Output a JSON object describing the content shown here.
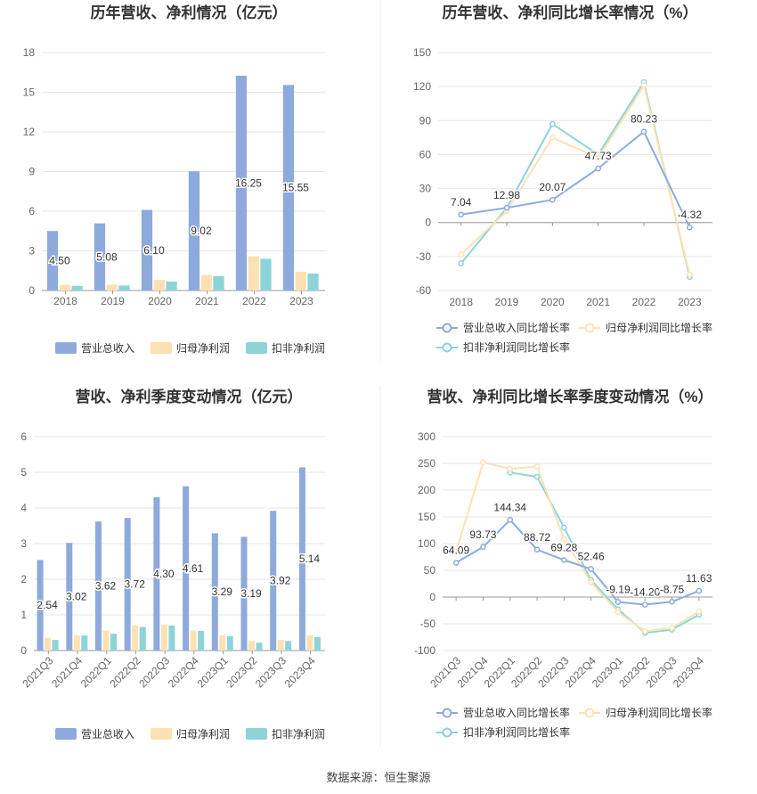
{
  "source": "数据来源：恒生聚源",
  "colors": {
    "revenue": "#8eaadc",
    "net_profit": "#fde1b2",
    "deducted_profit": "#8dd4d9",
    "grid": "#e6e6e6",
    "axis": "#999999",
    "text": "#666666",
    "title": "#333333"
  },
  "chart_data": [
    {
      "id": "annual-values",
      "type": "bar",
      "title": "历年营收、净利情况（亿元）",
      "categories": [
        "2018",
        "2019",
        "2020",
        "2021",
        "2022",
        "2023"
      ],
      "ylim": [
        0,
        18
      ],
      "yticks": [
        0,
        3,
        6,
        9,
        12,
        15,
        18
      ],
      "grid": true,
      "legend_position": "bottom",
      "series": [
        {
          "name": "营业总收入",
          "values": [
            4.5,
            5.08,
            6.1,
            9.02,
            16.25,
            15.55
          ],
          "labels": [
            "4.50",
            "5.08",
            "6.10",
            "9.02",
            "16.25",
            "15.55"
          ]
        },
        {
          "name": "归母净利润",
          "values": [
            0.42,
            0.45,
            0.8,
            1.18,
            2.58,
            1.42
          ]
        },
        {
          "name": "扣非净利润",
          "values": [
            0.35,
            0.38,
            0.68,
            1.1,
            2.4,
            1.28
          ]
        }
      ]
    },
    {
      "id": "annual-growth",
      "type": "line",
      "title": "历年营收、净利同比增长率情况（%）",
      "categories": [
        "2018",
        "2019",
        "2020",
        "2021",
        "2022",
        "2023"
      ],
      "ylim": [
        -60,
        150
      ],
      "yticks": [
        -60,
        -30,
        0,
        30,
        60,
        90,
        120,
        150
      ],
      "grid": true,
      "legend_position": "bottom",
      "series": [
        {
          "name": "营业总收入同比增长率",
          "values": [
            7.04,
            12.98,
            20.07,
            47.73,
            80.23,
            -4.32
          ],
          "labels": [
            "7.04",
            "12.98",
            "20.07",
            "47.73",
            "80.23",
            "-4.32"
          ]
        },
        {
          "name": "归母净利润同比增长率",
          "values": [
            -28,
            10,
            75,
            57,
            121,
            -46
          ]
        },
        {
          "name": "扣非净利润同比增长率",
          "values": [
            -36,
            13,
            87,
            60,
            124,
            -48
          ]
        }
      ]
    },
    {
      "id": "quarterly-values",
      "type": "bar",
      "title": "营收、净利季度变动情况（亿元）",
      "categories": [
        "2021Q3",
        "2021Q4",
        "2022Q1",
        "2022Q2",
        "2022Q3",
        "2022Q4",
        "2023Q1",
        "2023Q2",
        "2023Q3",
        "2023Q4"
      ],
      "ylim": [
        0,
        6
      ],
      "yticks": [
        0,
        1,
        2,
        3,
        4,
        5,
        6
      ],
      "grid": true,
      "legend_position": "bottom",
      "series": [
        {
          "name": "营业总收入",
          "values": [
            2.54,
            3.02,
            3.62,
            3.72,
            4.3,
            4.61,
            3.29,
            3.19,
            3.92,
            5.14
          ],
          "labels": [
            "2.54",
            "3.02",
            "3.62",
            "3.72",
            "4.30",
            "4.61",
            "3.29",
            "3.19",
            "3.92",
            "5.14"
          ]
        },
        {
          "name": "归母净利润",
          "values": [
            0.36,
            0.42,
            0.56,
            0.7,
            0.72,
            0.56,
            0.42,
            0.27,
            0.3,
            0.42
          ]
        },
        {
          "name": "扣非净利润",
          "values": [
            0.3,
            0.42,
            0.47,
            0.66,
            0.7,
            0.55,
            0.4,
            0.22,
            0.27,
            0.38
          ]
        }
      ]
    },
    {
      "id": "quarterly-growth",
      "type": "line",
      "title": "营收、净利同比增长率季度变动情况（%）",
      "categories": [
        "2021Q3",
        "2021Q4",
        "2022Q1",
        "2022Q2",
        "2022Q3",
        "2022Q4",
        "2023Q1",
        "2023Q2",
        "2023Q3",
        "2023Q4"
      ],
      "ylim": [
        -100,
        300
      ],
      "yticks": [
        -100,
        -50,
        0,
        50,
        100,
        150,
        200,
        250,
        300
      ],
      "grid": true,
      "legend_position": "bottom",
      "series": [
        {
          "name": "营业总收入同比增长率",
          "values": [
            64.09,
            93.73,
            144.34,
            88.72,
            69.28,
            52.46,
            -9.19,
            -14.2,
            -8.75,
            11.63
          ],
          "labels": [
            "64.09",
            "93.73",
            "144.34",
            "88.72",
            "69.28",
            "52.46",
            "-9.19",
            "-14.20",
            "-8.75",
            "11.63"
          ]
        },
        {
          "name": "归母净利润同比增长率",
          "values": [
            85,
            252,
            240,
            244,
            108,
            28,
            -28,
            -64,
            -58,
            -27
          ]
        },
        {
          "name": "扣非净利润同比增长率",
          "values": [
            null,
            null,
            233,
            225,
            130,
            32,
            -23,
            -67,
            -61,
            -33
          ]
        }
      ]
    }
  ]
}
